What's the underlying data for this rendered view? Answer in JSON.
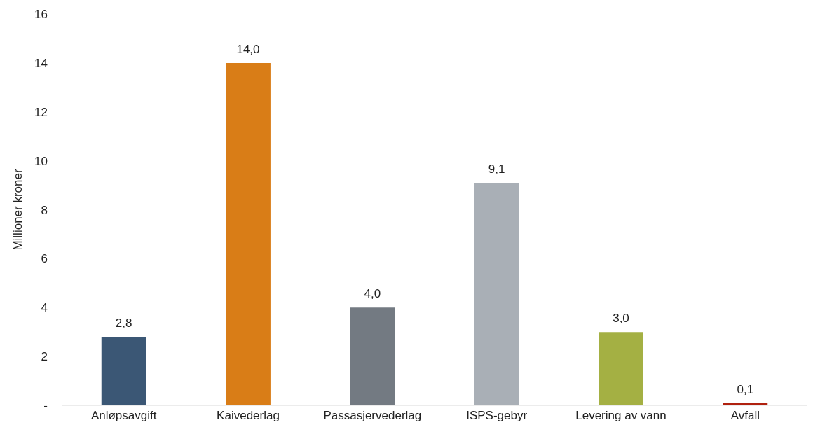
{
  "chart_data": {
    "type": "bar",
    "ylabel": "Millioner kroner",
    "categories": [
      "Anløpsavgift",
      "Kaivederlag",
      "Passasjervederlag",
      "ISPS-gebyr",
      "Levering av vann",
      "Avfall"
    ],
    "values": [
      2.8,
      14.0,
      4.0,
      9.1,
      3.0,
      0.1
    ],
    "colors": [
      "#3b5775",
      "#d97d17",
      "#737a82",
      "#a9afb6",
      "#a4b043",
      "#b0210f"
    ],
    "value_labels": [
      "2,8",
      "14,0",
      "4,0",
      "9,1",
      "3,0",
      "0,1"
    ],
    "ylim": [
      0,
      16
    ],
    "yticks": [
      {
        "value": 0,
        "label": "-"
      },
      2,
      4,
      6,
      8,
      10,
      12,
      14,
      16
    ],
    "grid": false,
    "legend": false
  }
}
